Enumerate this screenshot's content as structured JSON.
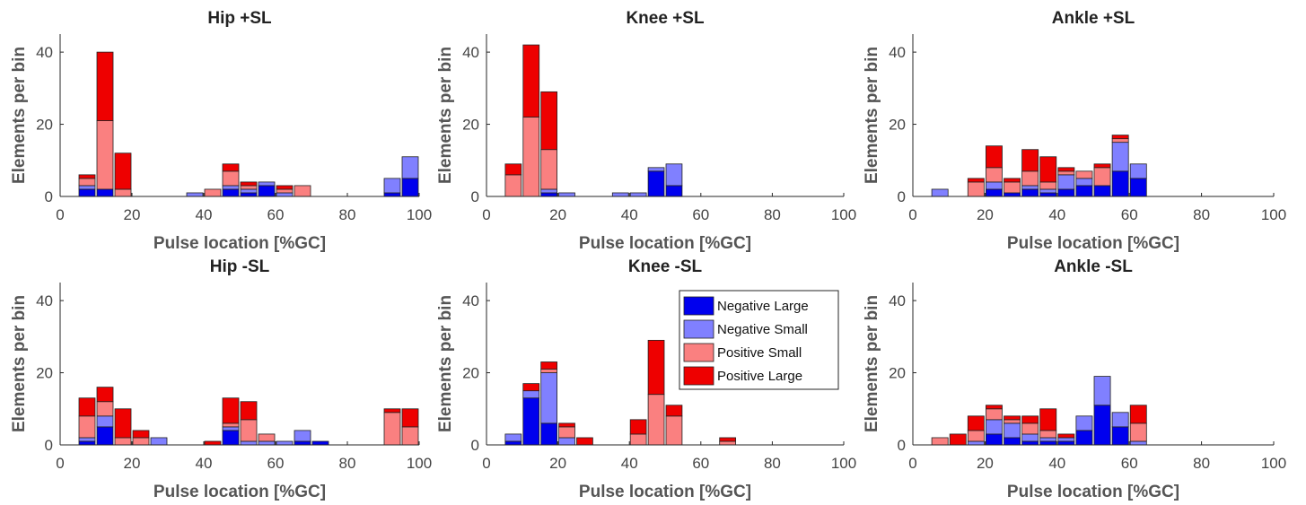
{
  "colors": {
    "Negative Large": "#0000ee",
    "Negative Small": "#8080ff",
    "Positive Small": "#fa8080",
    "Positive Large": "#ee0000"
  },
  "legend": [
    "Negative Large",
    "Negative Small",
    "Positive Small",
    "Positive Large"
  ],
  "chart_data": [
    {
      "type": "bar",
      "stacked": true,
      "title": "Hip +SL",
      "xlabel": "Pulse location [%GC]",
      "ylabel": "Elements per bin",
      "xlim": [
        0,
        100
      ],
      "ylim": [
        0,
        45
      ],
      "xticks": [
        0,
        20,
        40,
        60,
        80,
        100
      ],
      "yticks": [
        0,
        20,
        40
      ],
      "x": [
        7.5,
        12.5,
        17.5,
        22.5,
        27.5,
        32.5,
        37.5,
        42.5,
        47.5,
        52.5,
        57.5,
        62.5,
        67.5,
        72.5,
        77.5,
        82.5,
        87.5,
        92.5,
        97.5
      ],
      "series": [
        {
          "name": "Negative Large",
          "values": [
            2,
            2,
            0,
            0,
            0,
            0,
            0,
            0,
            2,
            1,
            3,
            0,
            0,
            0,
            0,
            0,
            0,
            1,
            5
          ]
        },
        {
          "name": "Negative Small",
          "values": [
            1,
            0,
            0,
            0,
            0,
            0,
            1,
            0,
            1,
            1,
            1,
            1,
            0,
            0,
            0,
            0,
            0,
            4,
            6
          ]
        },
        {
          "name": "Positive Small",
          "values": [
            2,
            19,
            2,
            0,
            0,
            0,
            0,
            2,
            4,
            1,
            0,
            1,
            3,
            0,
            0,
            0,
            0,
            0,
            0
          ]
        },
        {
          "name": "Positive Large",
          "values": [
            1,
            19,
            10,
            0,
            0,
            0,
            0,
            0,
            2,
            1,
            0,
            1,
            0,
            0,
            0,
            0,
            0,
            0,
            0
          ]
        }
      ]
    },
    {
      "type": "bar",
      "stacked": true,
      "title": "Knee +SL",
      "xlabel": "Pulse location [%GC]",
      "ylabel": "Elements per bin",
      "xlim": [
        0,
        100
      ],
      "ylim": [
        0,
        45
      ],
      "xticks": [
        0,
        20,
        40,
        60,
        80,
        100
      ],
      "yticks": [
        0,
        20,
        40
      ],
      "x": [
        7.5,
        12.5,
        17.5,
        22.5,
        27.5,
        32.5,
        37.5,
        42.5,
        47.5,
        52.5,
        57.5,
        62.5,
        67.5,
        72.5,
        77.5,
        82.5,
        87.5,
        92.5,
        97.5
      ],
      "series": [
        {
          "name": "Negative Large",
          "values": [
            0,
            0,
            1,
            0,
            0,
            0,
            0,
            0,
            7,
            3,
            0,
            0,
            0,
            0,
            0,
            0,
            0,
            0,
            0
          ]
        },
        {
          "name": "Negative Small",
          "values": [
            0,
            0,
            1,
            1,
            0,
            0,
            1,
            1,
            1,
            6,
            0,
            0,
            0,
            0,
            0,
            0,
            0,
            0,
            0
          ]
        },
        {
          "name": "Positive Small",
          "values": [
            6,
            22,
            11,
            0,
            0,
            0,
            0,
            0,
            0,
            0,
            0,
            0,
            0,
            0,
            0,
            0,
            0,
            0,
            0
          ]
        },
        {
          "name": "Positive Large",
          "values": [
            3,
            20,
            16,
            0,
            0,
            0,
            0,
            0,
            0,
            0,
            0,
            0,
            0,
            0,
            0,
            0,
            0,
            0,
            0
          ]
        }
      ]
    },
    {
      "type": "bar",
      "stacked": true,
      "title": "Ankle +SL",
      "xlabel": "Pulse location [%GC]",
      "ylabel": "Elements per bin",
      "xlim": [
        0,
        100
      ],
      "ylim": [
        0,
        45
      ],
      "xticks": [
        0,
        20,
        40,
        60,
        80,
        100
      ],
      "yticks": [
        0,
        20,
        40
      ],
      "x": [
        7.5,
        12.5,
        17.5,
        22.5,
        27.5,
        32.5,
        37.5,
        42.5,
        47.5,
        52.5,
        57.5,
        62.5,
        67.5,
        72.5,
        77.5,
        82.5,
        87.5,
        92.5,
        97.5
      ],
      "series": [
        {
          "name": "Negative Large",
          "values": [
            0,
            0,
            0,
            2,
            1,
            2,
            1,
            2,
            3,
            3,
            7,
            5,
            0,
            0,
            0,
            0,
            0,
            0,
            0
          ]
        },
        {
          "name": "Negative Small",
          "values": [
            2,
            0,
            0,
            2,
            0,
            1,
            1,
            4,
            2,
            0,
            8,
            4,
            0,
            0,
            0,
            0,
            0,
            0,
            0
          ]
        },
        {
          "name": "Positive Small",
          "values": [
            0,
            0,
            4,
            4,
            3,
            4,
            2,
            1,
            2,
            5,
            1,
            0,
            0,
            0,
            0,
            0,
            0,
            0,
            0
          ]
        },
        {
          "name": "Positive Large",
          "values": [
            0,
            0,
            1,
            6,
            1,
            6,
            7,
            1,
            0,
            1,
            1,
            0,
            0,
            0,
            0,
            0,
            0,
            0,
            0
          ]
        }
      ]
    },
    {
      "type": "bar",
      "stacked": true,
      "title": "Hip -SL",
      "xlabel": "Pulse location [%GC]",
      "ylabel": "Elements per bin",
      "xlim": [
        0,
        100
      ],
      "ylim": [
        0,
        45
      ],
      "xticks": [
        0,
        20,
        40,
        60,
        80,
        100
      ],
      "yticks": [
        0,
        20,
        40
      ],
      "x": [
        7.5,
        12.5,
        17.5,
        22.5,
        27.5,
        32.5,
        37.5,
        42.5,
        47.5,
        52.5,
        57.5,
        62.5,
        67.5,
        72.5,
        77.5,
        82.5,
        87.5,
        92.5,
        97.5
      ],
      "series": [
        {
          "name": "Negative Large",
          "values": [
            1,
            5,
            0,
            0,
            0,
            0,
            0,
            0,
            4,
            0,
            0,
            0,
            1,
            1,
            0,
            0,
            0,
            0,
            0
          ]
        },
        {
          "name": "Negative Small",
          "values": [
            1,
            3,
            0,
            0,
            2,
            0,
            0,
            0,
            1,
            1,
            1,
            1,
            3,
            0,
            0,
            0,
            0,
            0,
            0
          ]
        },
        {
          "name": "Positive Small",
          "values": [
            6,
            4,
            2,
            2,
            0,
            0,
            0,
            0,
            1,
            6,
            2,
            0,
            0,
            0,
            0,
            0,
            0,
            9,
            5
          ]
        },
        {
          "name": "Positive Large",
          "values": [
            5,
            4,
            8,
            2,
            0,
            0,
            0,
            1,
            7,
            5,
            0,
            0,
            0,
            0,
            0,
            0,
            0,
            1,
            5
          ]
        }
      ]
    },
    {
      "type": "bar",
      "stacked": true,
      "title": "Knee -SL",
      "xlabel": "Pulse location [%GC]",
      "ylabel": "Elements per bin",
      "xlim": [
        0,
        100
      ],
      "ylim": [
        0,
        45
      ],
      "xticks": [
        0,
        20,
        40,
        60,
        80,
        100
      ],
      "yticks": [
        0,
        20,
        40
      ],
      "x": [
        7.5,
        12.5,
        17.5,
        22.5,
        27.5,
        32.5,
        37.5,
        42.5,
        47.5,
        52.5,
        57.5,
        62.5,
        67.5,
        72.5,
        77.5,
        82.5,
        87.5,
        92.5,
        97.5
      ],
      "series": [
        {
          "name": "Negative Large",
          "values": [
            1,
            13,
            6,
            0,
            0,
            0,
            0,
            0,
            0,
            0,
            0,
            0,
            0,
            0,
            0,
            0,
            0,
            0,
            0
          ]
        },
        {
          "name": "Negative Small",
          "values": [
            2,
            2,
            14,
            2,
            0,
            0,
            0,
            0,
            0,
            0,
            0,
            0,
            0,
            0,
            0,
            0,
            0,
            0,
            0
          ]
        },
        {
          "name": "Positive Small",
          "values": [
            0,
            0,
            1,
            3,
            0,
            0,
            0,
            3,
            14,
            8,
            0,
            0,
            1,
            0,
            0,
            0,
            0,
            0,
            0
          ]
        },
        {
          "name": "Positive Large",
          "values": [
            0,
            2,
            2,
            1,
            2,
            0,
            0,
            4,
            15,
            3,
            0,
            0,
            1,
            0,
            0,
            0,
            0,
            0,
            0
          ]
        }
      ]
    },
    {
      "type": "bar",
      "stacked": true,
      "title": "Ankle -SL",
      "xlabel": "Pulse location [%GC]",
      "ylabel": "Elements per bin",
      "xlim": [
        0,
        100
      ],
      "ylim": [
        0,
        45
      ],
      "xticks": [
        0,
        20,
        40,
        60,
        80,
        100
      ],
      "yticks": [
        0,
        20,
        40
      ],
      "x": [
        7.5,
        12.5,
        17.5,
        22.5,
        27.5,
        32.5,
        37.5,
        42.5,
        47.5,
        52.5,
        57.5,
        62.5,
        67.5,
        72.5,
        77.5,
        82.5,
        87.5,
        92.5,
        97.5
      ],
      "series": [
        {
          "name": "Negative Large",
          "values": [
            0,
            0,
            0,
            3,
            2,
            1,
            1,
            1,
            4,
            11,
            5,
            0,
            0,
            0,
            0,
            0,
            0,
            0,
            0
          ]
        },
        {
          "name": "Negative Small",
          "values": [
            0,
            0,
            1,
            4,
            4,
            2,
            1,
            1,
            4,
            8,
            4,
            1,
            0,
            0,
            0,
            0,
            0,
            0,
            0
          ]
        },
        {
          "name": "Positive Small",
          "values": [
            2,
            0,
            3,
            3,
            1,
            3,
            2,
            0,
            0,
            0,
            0,
            5,
            0,
            0,
            0,
            0,
            0,
            0,
            0
          ]
        },
        {
          "name": "Positive Large",
          "values": [
            0,
            3,
            4,
            1,
            1,
            2,
            6,
            1,
            0,
            0,
            0,
            5,
            0,
            0,
            0,
            0,
            0,
            0,
            0
          ]
        }
      ]
    }
  ]
}
